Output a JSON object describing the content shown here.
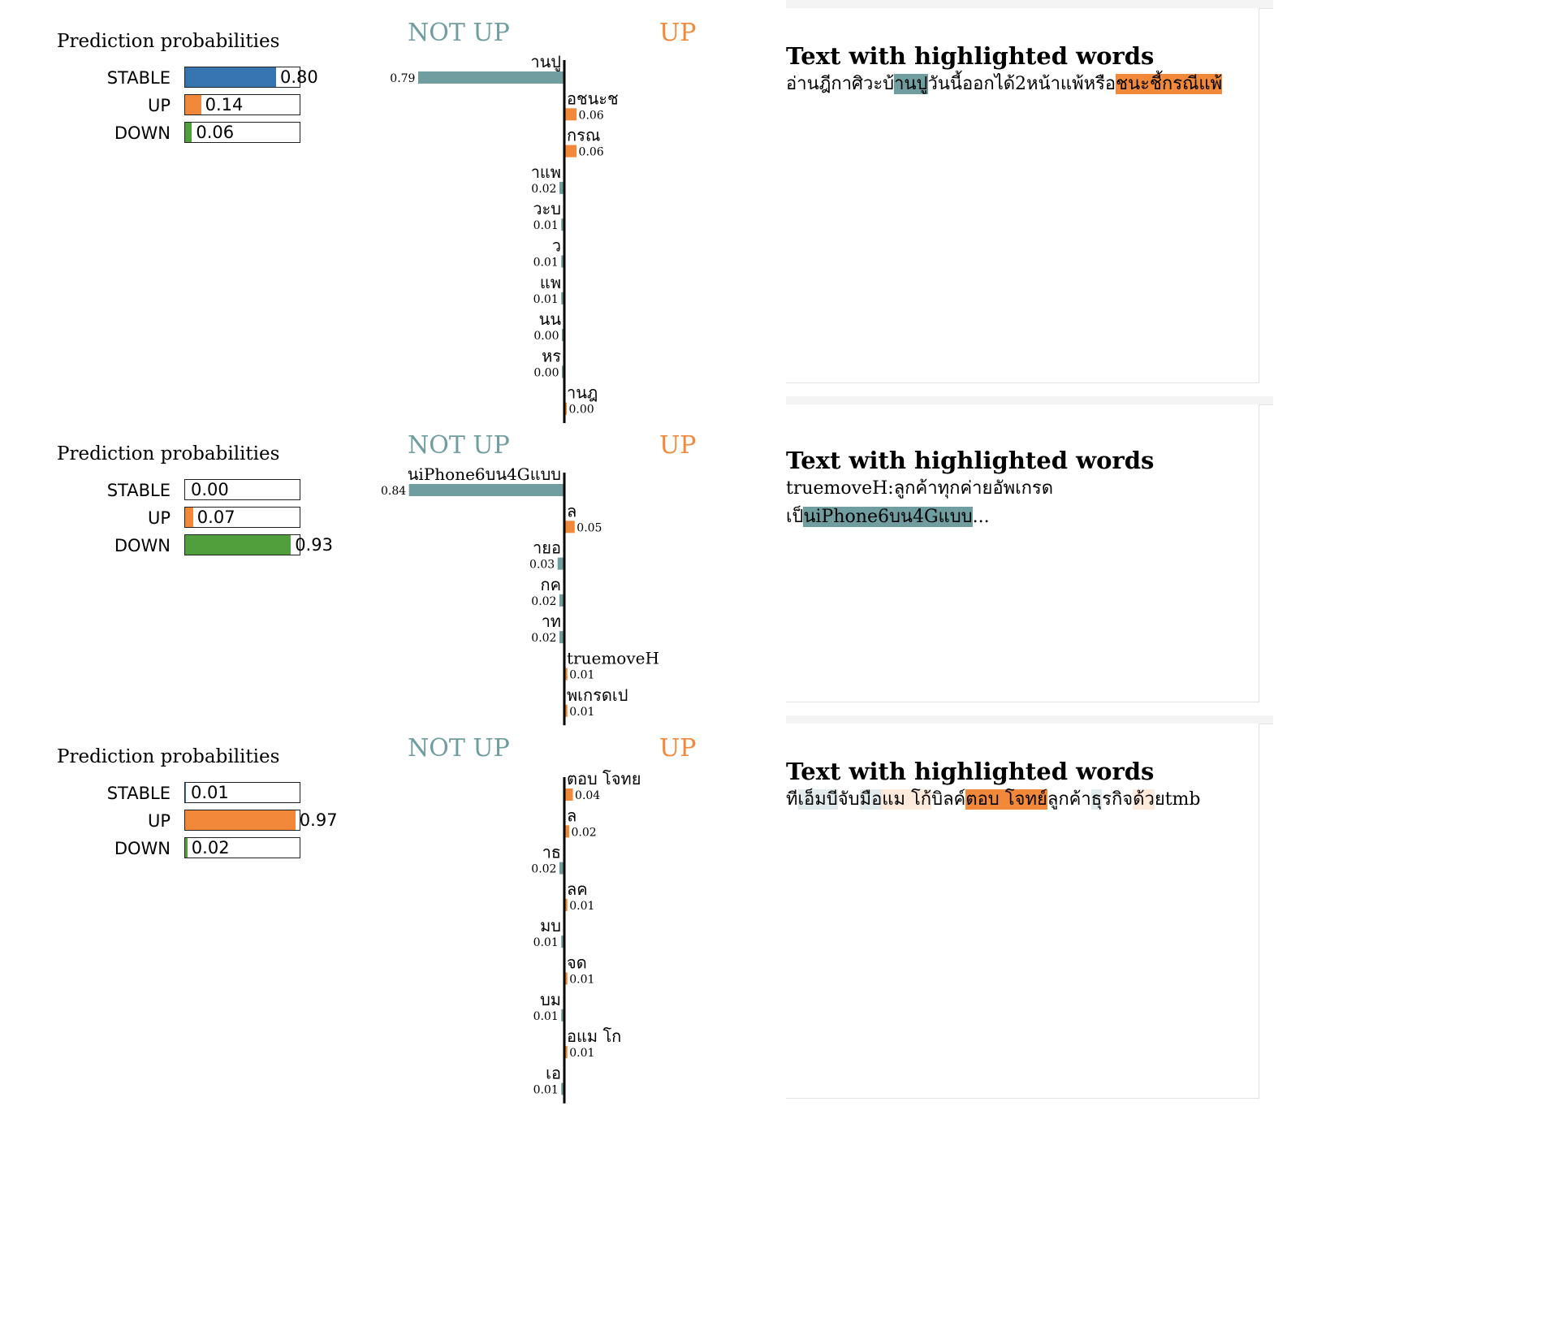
{
  "colors": {
    "stable": "#3775b0",
    "up": "#f2893a",
    "down": "#509e3c",
    "not_up": "#709ea0",
    "axis": "#000000"
  },
  "blocks": [
    {
      "probs_title": "Prediction probabilities",
      "probs": [
        {
          "label": "STABLE",
          "value": 0.8,
          "value_text": "0.80",
          "color": "#3775b0"
        },
        {
          "label": "UP",
          "value": 0.14,
          "value_text": "0.14",
          "color": "#f2893a"
        },
        {
          "label": "DOWN",
          "value": 0.06,
          "value_text": "0.06",
          "color": "#509e3c"
        }
      ],
      "class_neg": "NOT UP",
      "class_pos": "UP",
      "highlight_title": "Text with highlighted words",
      "text_segments": [
        {
          "t": "อ่านฎีกาศิวะบ้",
          "w": 0
        },
        {
          "t": "านปู",
          "w": -0.79
        },
        {
          "t": "วันนี้ออกได้2หน้าแพ้หรือ",
          "w": 0
        },
        {
          "t": "ชนะชี้กรณีแพ้",
          "w": 0.06
        }
      ]
    },
    {
      "probs_title": "Prediction probabilities",
      "probs": [
        {
          "label": "STABLE",
          "value": 0.0,
          "value_text": "0.00",
          "color": "#3775b0"
        },
        {
          "label": "UP",
          "value": 0.07,
          "value_text": "0.07",
          "color": "#f2893a"
        },
        {
          "label": "DOWN",
          "value": 0.93,
          "value_text": "0.93",
          "color": "#509e3c"
        }
      ],
      "class_neg": "NOT UP",
      "class_pos": "UP",
      "highlight_title": "Text with highlighted words",
      "text_segments": [
        {
          "t": "truemoveH:",
          "w": 0
        },
        {
          "t": "ลูกค้าทุกค่ายอัพเกรด",
          "w": 0
        },
        {
          "t": "\n",
          "w": 0
        },
        {
          "t": "เป็",
          "w": 0
        },
        {
          "t": "นiPhone6บน4Gแบบ",
          "w": -0.84
        },
        {
          "t": "...",
          "w": 0
        }
      ]
    },
    {
      "probs_title": "Prediction probabilities",
      "probs": [
        {
          "label": "STABLE",
          "value": 0.01,
          "value_text": "0.01",
          "color": "#3775b0"
        },
        {
          "label": "UP",
          "value": 0.97,
          "value_text": "0.97",
          "color": "#f2893a"
        },
        {
          "label": "DOWN",
          "value": 0.02,
          "value_text": "0.02",
          "color": "#509e3c"
        }
      ],
      "class_neg": "NOT UP",
      "class_pos": "UP",
      "highlight_title": "Text with highlighted words",
      "text_segments": [
        {
          "t": "ที",
          "w": 0
        },
        {
          "t": "เอ็มบี",
          "w": -0.01
        },
        {
          "t": "จับ",
          "w": 0
        },
        {
          "t": "มือ",
          "w": -0.01
        },
        {
          "t": "แม โก้",
          "w": 0.01
        },
        {
          "t": "บิลค์",
          "w": 0
        },
        {
          "t": "ตอบ โจทย์",
          "w": 0.04
        },
        {
          "t": "ลูกค้า",
          "w": 0
        },
        {
          "t": "ธุ",
          "w": -0.02
        },
        {
          "t": "รกิจ",
          "w": 0
        },
        {
          "t": "ด้ว",
          "w": 0.01
        },
        {
          "t": "ยtmb",
          "w": 0
        }
      ]
    }
  ],
  "chart_data": [
    {
      "type": "bar",
      "title": "Prediction probabilities",
      "categories": [
        "STABLE",
        "UP",
        "DOWN"
      ],
      "values": [
        0.8,
        0.14,
        0.06
      ],
      "xlim": [
        0,
        1
      ]
    },
    {
      "type": "bar",
      "orientation": "horizontal",
      "legend": [
        "NOT UP",
        "UP"
      ],
      "categories": [
        "านปู",
        "อชนะช",
        "กรณ",
        "าแพ",
        "วะบ",
        "ว",
        "แพ",
        "นน",
        "หร",
        "านฎ"
      ],
      "values": [
        -0.79,
        0.06,
        0.06,
        -0.02,
        -0.01,
        -0.01,
        -0.01,
        0.0,
        0.0,
        0.0
      ],
      "labels": [
        "0.79",
        "0.06",
        "0.06",
        "0.02",
        "0.01",
        "0.01",
        "0.01",
        "0.00",
        "0.00",
        "0.00"
      ]
    },
    {
      "type": "bar",
      "title": "Prediction probabilities",
      "categories": [
        "STABLE",
        "UP",
        "DOWN"
      ],
      "values": [
        0.0,
        0.07,
        0.93
      ],
      "xlim": [
        0,
        1
      ]
    },
    {
      "type": "bar",
      "orientation": "horizontal",
      "legend": [
        "NOT UP",
        "UP"
      ],
      "categories": [
        "นiPhone6บน4Gแบบ",
        "ล",
        "ายอ",
        "กค",
        "าท",
        "truemoveH",
        "พเกรดเป"
      ],
      "values": [
        -0.84,
        0.05,
        -0.03,
        -0.02,
        -0.02,
        0.01,
        0.01
      ],
      "labels": [
        "0.84",
        "0.05",
        "0.03",
        "0.02",
        "0.02",
        "0.01",
        "0.01"
      ]
    },
    {
      "type": "bar",
      "title": "Prediction probabilities",
      "categories": [
        "STABLE",
        "UP",
        "DOWN"
      ],
      "values": [
        0.01,
        0.97,
        0.02
      ],
      "xlim": [
        0,
        1
      ]
    },
    {
      "type": "bar",
      "orientation": "horizontal",
      "legend": [
        "NOT UP",
        "UP"
      ],
      "categories": [
        "ตอบ โจทย",
        "ล",
        "าธ",
        "ลค",
        "มบ",
        "จด",
        "บม",
        "อแม โก",
        "เอ"
      ],
      "values": [
        0.04,
        0.02,
        -0.02,
        0.01,
        -0.01,
        0.01,
        -0.01,
        0.01,
        -0.01
      ],
      "labels": [
        "0.04",
        "0.02",
        "0.02",
        "0.01",
        "0.01",
        "0.01",
        "0.01",
        "0.01",
        "0.01"
      ]
    }
  ]
}
